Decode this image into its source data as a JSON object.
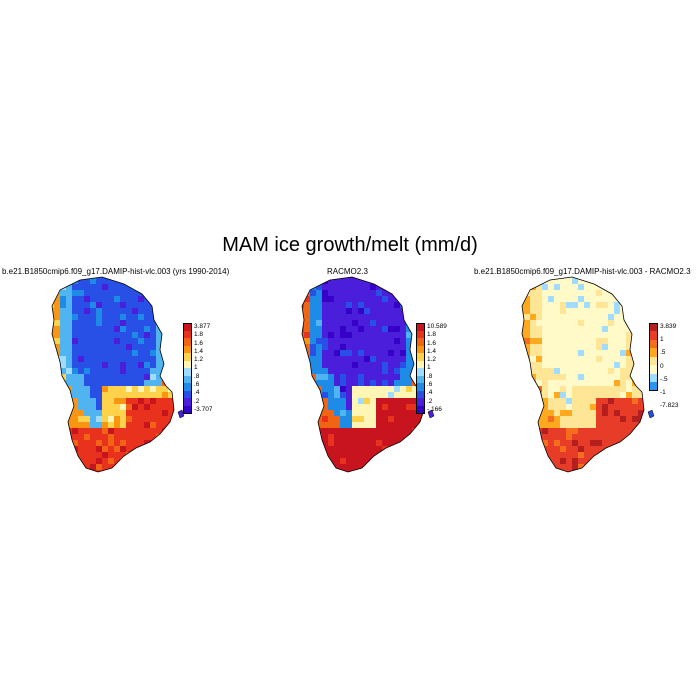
{
  "title": "MAM ice growth/melt (mm/d)",
  "panels": [
    {
      "title": "b.e21.B1850cmip6.f09_g17.DAMIP-hist-vlc.003 (yrs 1990-2014)",
      "colorbar_labels": [
        "3.877",
        "1.8",
        "1.6",
        "1.4",
        "1.2",
        "1",
        ".8",
        ".6",
        ".4",
        ".2",
        "-3.707"
      ],
      "colors": [
        "#c8141e",
        "#e8321e",
        "#f06414",
        "#f89614",
        "#ffd24b",
        "#fff5b4",
        "#a0dcff",
        "#50b4f0",
        "#1e8ce6",
        "#2850e6",
        "#4b1edc",
        "#3700c8"
      ],
      "palette_indices": {
        "interior": 9,
        "mid": 7,
        "south": 4,
        "coast": 1
      }
    },
    {
      "title": "RACMO2.3",
      "colorbar_labels": [
        "10.589",
        "1.8",
        "1.6",
        "1.4",
        "1.2",
        "1",
        ".8",
        ".6",
        ".4",
        ".2",
        "-.166"
      ],
      "colors": [
        "#c8141e",
        "#e8321e",
        "#f06414",
        "#f89614",
        "#ffd24b",
        "#fff5b4",
        "#a0dcff",
        "#50b4f0",
        "#1e8ce6",
        "#2850e6",
        "#4b1edc",
        "#3700c8"
      ],
      "palette_indices": {
        "interior": 10,
        "mid": 8,
        "south": 5,
        "coast": 0
      }
    },
    {
      "title": "b.e21.B1850cmip6.f09_g17.DAMIP-hist-vlc.003 - RACMO2.3",
      "colorbar_labels": [
        "3.839",
        "1",
        ".5",
        "0",
        "-.5",
        "-1",
        "-7.823"
      ],
      "colors": [
        "#b41e1e",
        "#e63c28",
        "#f56e1e",
        "#ffaa1e",
        "#ffe696",
        "#fffac8",
        "#a0dcff",
        "#2896f0",
        "#1e50dc",
        "#5a14c8"
      ],
      "palette_indices": {
        "interior": 5,
        "mid": 4,
        "south": 4,
        "coast": 1
      }
    }
  ]
}
